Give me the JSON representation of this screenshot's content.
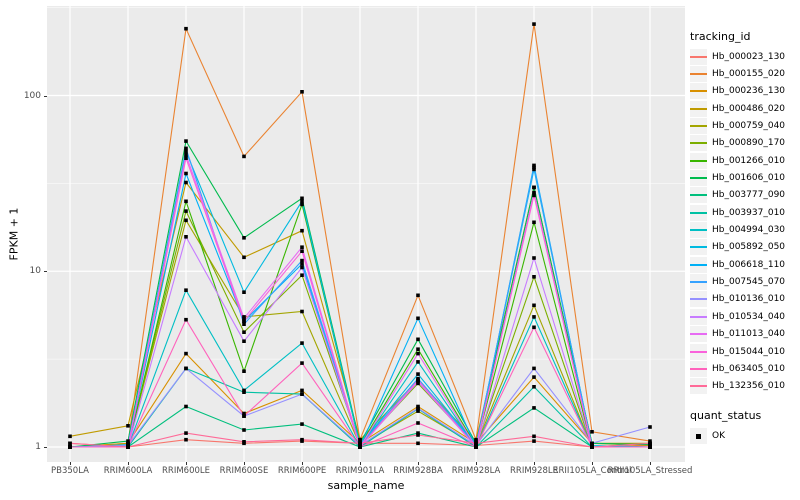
{
  "colors": {
    "panel_bg": "#EBEBEB",
    "grid": "#FFFFFF",
    "tick_text": "#4D4D4D",
    "axis_title": "#000000",
    "legend_key_bg": "#F2F2F2",
    "point": "#000000"
  },
  "chart_data": {
    "type": "line",
    "title": "",
    "xlabel": "sample_name",
    "ylabel": "FPKM + 1",
    "y_scale": "log10",
    "grid": true,
    "legend_position": "right",
    "y_ticks": [
      1,
      10,
      100
    ],
    "y_minor_ticks": [
      3.162,
      31.623,
      316.228
    ],
    "ylim": [
      0.92,
      320
    ],
    "point_shape": "filled-square",
    "legend": {
      "title": "tracking_id"
    },
    "point_legend": {
      "title": "quant_status",
      "label": "OK"
    },
    "categories": [
      "PB350LA",
      "RRIM600LA",
      "RRIM600LE",
      "RRIM600SE",
      "RRIM600PE",
      "RRIM901LA",
      "RRIM928BA",
      "RRIM928LA",
      "RRIM928LE",
      "RRII105LA_Control",
      "RRII105LA_Stressed"
    ],
    "series": [
      {
        "name": "Hb_000023_130",
        "color": "#F8766D",
        "values": [
          1.05,
          1.0,
          1.1,
          1.05,
          1.08,
          1.05,
          1.05,
          1.02,
          1.08,
          1.0,
          1.02
        ]
      },
      {
        "name": "Hb_000155_020",
        "color": "#EA8331",
        "values": [
          1.0,
          1.05,
          240,
          45,
          105,
          1.1,
          7.3,
          1.1,
          255,
          1.22,
          1.08
        ]
      },
      {
        "name": "Hb_000236_130",
        "color": "#D89000",
        "values": [
          1.0,
          1.05,
          3.4,
          1.55,
          2.1,
          1.05,
          1.7,
          1.05,
          2.5,
          1.05,
          1.02
        ]
      },
      {
        "name": "Hb_000486_020",
        "color": "#C09B00",
        "values": [
          1.15,
          1.32,
          32,
          12,
          17,
          1.1,
          2.4,
          1.08,
          30,
          1.05,
          1.05
        ]
      },
      {
        "name": "Hb_000759_040",
        "color": "#A3A500",
        "values": [
          1.0,
          1.02,
          19.5,
          5.5,
          5.9,
          1.02,
          1.6,
          1.02,
          6.4,
          1.0,
          1.0
        ]
      },
      {
        "name": "Hb_000890_170",
        "color": "#7CAE00",
        "values": [
          1.0,
          1.02,
          22,
          4.5,
          9.5,
          1.02,
          2.3,
          1.02,
          9.3,
          1.0,
          1.0
        ]
      },
      {
        "name": "Hb_001266_010",
        "color": "#39B600",
        "values": [
          1.0,
          1.0,
          25,
          2.7,
          24,
          1.02,
          3.6,
          1.02,
          19,
          1.0,
          1.0
        ]
      },
      {
        "name": "Hb_001606_010",
        "color": "#00BB4E",
        "values": [
          1.0,
          1.08,
          55,
          15.5,
          26,
          1.05,
          4.1,
          1.05,
          30,
          1.05,
          1.03
        ]
      },
      {
        "name": "Hb_003777_090",
        "color": "#00BF7D",
        "values": [
          1.0,
          1.0,
          1.7,
          1.25,
          1.35,
          1.0,
          1.2,
          1.0,
          1.67,
          1.0,
          1.05
        ]
      },
      {
        "name": "Hb_003937_010",
        "color": "#00C1A3",
        "values": [
          1.0,
          1.0,
          2.8,
          2.05,
          2.0,
          1.0,
          1.65,
          1.0,
          2.2,
          1.0,
          1.0
        ]
      },
      {
        "name": "Hb_004994_030",
        "color": "#00BFC4",
        "values": [
          1.0,
          1.0,
          7.8,
          2.1,
          3.9,
          1.0,
          3.05,
          1.0,
          5.5,
          1.0,
          1.0
        ]
      },
      {
        "name": "Hb_005892_050",
        "color": "#00BAE0",
        "values": [
          1.0,
          1.03,
          48,
          7.6,
          25,
          1.02,
          2.6,
          1.02,
          38,
          1.02,
          1.0
        ]
      },
      {
        "name": "Hb_006618_110",
        "color": "#00B0F6",
        "values": [
          1.0,
          1.0,
          36,
          5.2,
          11,
          1.0,
          5.4,
          1.0,
          40,
          1.0,
          1.0
        ]
      },
      {
        "name": "Hb_007545_070",
        "color": "#35A2FF",
        "values": [
          1.0,
          1.02,
          50,
          5.0,
          11.5,
          1.02,
          2.45,
          1.02,
          39,
          1.0,
          1.0
        ]
      },
      {
        "name": "Hb_010136_010",
        "color": "#9590FF",
        "values": [
          1.0,
          1.02,
          2.8,
          1.5,
          2.0,
          1.02,
          1.66,
          1.02,
          2.8,
          1.05,
          1.3
        ]
      },
      {
        "name": "Hb_010534_040",
        "color": "#C77CFF",
        "values": [
          1.0,
          1.0,
          15.7,
          4.0,
          10.5,
          1.0,
          2.35,
          1.0,
          11.9,
          1.0,
          1.0
        ]
      },
      {
        "name": "Hb_011013_040",
        "color": "#E76BF3",
        "values": [
          1.0,
          1.0,
          46,
          5.4,
          13.7,
          1.0,
          3.4,
          1.0,
          28,
          1.0,
          1.0
        ]
      },
      {
        "name": "Hb_015044_010",
        "color": "#FA62DB",
        "values": [
          1.0,
          1.0,
          44,
          5.2,
          13,
          1.0,
          2.4,
          1.0,
          27,
          1.0,
          1.0
        ]
      },
      {
        "name": "Hb_063405_010",
        "color": "#FF62BC",
        "values": [
          1.0,
          1.0,
          5.3,
          1.5,
          3.0,
          1.0,
          1.37,
          1.0,
          4.8,
          1.0,
          1.0
        ]
      },
      {
        "name": "Hb_132356_010",
        "color": "#FF6A98",
        "values": [
          1.05,
          1.0,
          1.2,
          1.07,
          1.1,
          1.05,
          1.17,
          1.05,
          1.15,
          1.0,
          1.05
        ]
      }
    ]
  }
}
